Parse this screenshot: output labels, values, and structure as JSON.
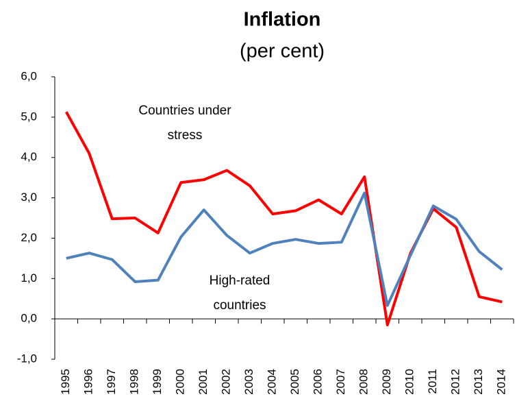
{
  "chart_data": {
    "type": "line",
    "title": "Inflation",
    "subtitle": "(per cent)",
    "categories": [
      "1995",
      "1996",
      "1997",
      "1998",
      "1999",
      "2000",
      "2001",
      "2002",
      "2003",
      "2004",
      "2005",
      "2006",
      "2007",
      "2008",
      "2009",
      "2010",
      "2011",
      "2012",
      "2013",
      "2014"
    ],
    "series": [
      {
        "color": "#ff0000",
        "values": [
          5.13,
          4.1,
          2.48,
          2.5,
          2.13,
          3.38,
          3.45,
          3.68,
          3.3,
          2.6,
          2.68,
          2.95,
          2.6,
          3.52,
          -0.15,
          1.62,
          2.73,
          2.27,
          0.55,
          0.42
        ]
      },
      {
        "color": "#4f81bd",
        "values": [
          1.5,
          1.63,
          1.47,
          0.92,
          0.96,
          2.03,
          2.7,
          2.07,
          1.63,
          1.87,
          1.97,
          1.87,
          1.9,
          3.12,
          0.33,
          1.57,
          2.8,
          2.47,
          1.67,
          1.22
        ]
      }
    ],
    "annotations": [
      {
        "lines": [
          "Countries under",
          "stress"
        ]
      },
      {
        "lines": [
          "High-rated",
          "countries"
        ]
      }
    ],
    "ylim": [
      -1,
      6
    ],
    "yticks": [
      {
        "value": -1,
        "label": "-1,0"
      },
      {
        "value": 0,
        "label": "0,0"
      },
      {
        "value": 1,
        "label": "1,0"
      },
      {
        "value": 2,
        "label": "2,0"
      },
      {
        "value": 3,
        "label": "3,0"
      },
      {
        "value": 4,
        "label": "4,0"
      },
      {
        "value": 5,
        "label": "5,0"
      },
      {
        "value": 6,
        "label": "6,0"
      }
    ]
  }
}
